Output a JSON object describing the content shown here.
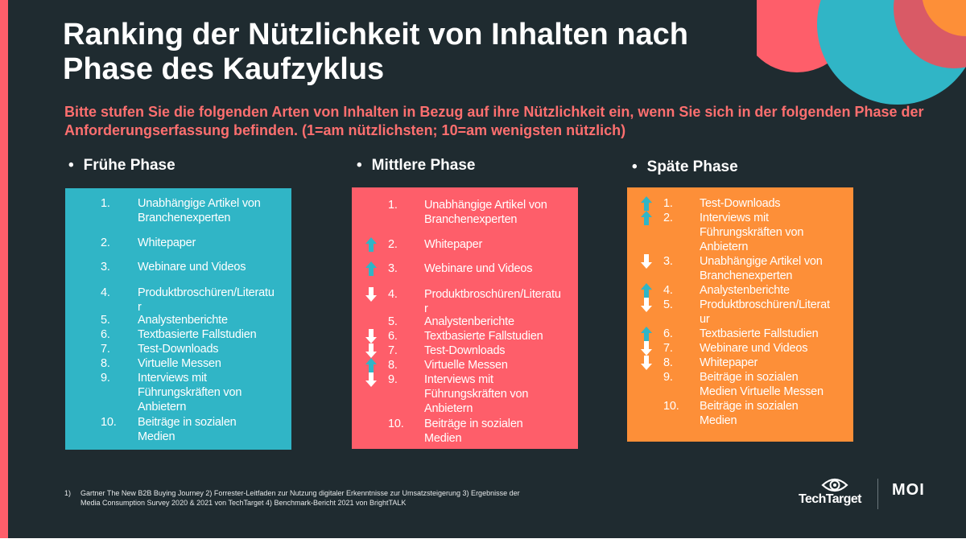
{
  "title": "Ranking der Nützlichkeit von Inhalten nach Phase des Kaufzyklus",
  "subtitle": "Bitte stufen Sie die folgenden Arten von Inhalten in Bezug auf ihre Nützlichkeit ein, wenn Sie sich in der folgenden Phase der Anforderungserfassung befinden. (1=am nützlichsten; 10=am wenigsten nützlich)",
  "bullet": "•",
  "colors": {
    "background": "#1f2b30",
    "accent_red": "#fe5e6a",
    "early_box": "#30b5c6",
    "late_box": "#fd8f38",
    "arrow_up": "#30b5c6",
    "arrow_down": "#ffffff"
  },
  "phases": {
    "early": {
      "heading": "Frühe Phase",
      "items": [
        {
          "num": "1.",
          "text_lines": [
            "Unabhängige Artikel von",
            "Branchenexperten"
          ],
          "arrow": "none"
        },
        {
          "num": "2.",
          "text_lines": [
            "Whitepaper"
          ],
          "arrow": "none"
        },
        {
          "num": "3.",
          "text_lines": [
            "Webinare und Videos"
          ],
          "arrow": "none"
        },
        {
          "num": "4.",
          "text_lines": [
            "Produktbroschüren/Literatu",
            "r"
          ],
          "arrow": "none"
        },
        {
          "num": "5.",
          "text_lines": [
            "Analystenberichte"
          ],
          "arrow": "none"
        },
        {
          "num": "6.",
          "text_lines": [
            "Textbasierte Fallstudien"
          ],
          "arrow": "none"
        },
        {
          "num": "7.",
          "text_lines": [
            "Test-Downloads"
          ],
          "arrow": "none"
        },
        {
          "num": "8.",
          "text_lines": [
            "Virtuelle Messen"
          ],
          "arrow": "none"
        },
        {
          "num": "9.",
          "text_lines": [
            "Interviews mit",
            "Führungskräften von",
            "Anbietern"
          ],
          "arrow": "none"
        },
        {
          "num": "10.",
          "text_lines": [
            "Beiträge in sozialen",
            "Medien"
          ],
          "arrow": "none"
        }
      ]
    },
    "middle": {
      "heading": "Mittlere Phase",
      "items": [
        {
          "num": "1.",
          "text_lines": [
            "Unabhängige Artikel von",
            "Branchenexperten"
          ],
          "arrow": "none"
        },
        {
          "num": "2.",
          "text_lines": [
            "Whitepaper"
          ],
          "arrow": "up"
        },
        {
          "num": "3.",
          "text_lines": [
            "Webinare und Videos"
          ],
          "arrow": "up"
        },
        {
          "num": "4.",
          "text_lines": [
            "Produktbroschüren/Literatu",
            "r"
          ],
          "arrow": "down"
        },
        {
          "num": "5.",
          "text_lines": [
            "Analystenberichte"
          ],
          "arrow": "none"
        },
        {
          "num": "6.",
          "text_lines": [
            "Textbasierte Fallstudien"
          ],
          "arrow": "down"
        },
        {
          "num": "7.",
          "text_lines": [
            "Test-Downloads"
          ],
          "arrow": "down"
        },
        {
          "num": "8.",
          "text_lines": [
            "Virtuelle Messen"
          ],
          "arrow": "up"
        },
        {
          "num": "9.",
          "text_lines": [
            "Interviews mit",
            "Führungskräften von",
            "Anbietern"
          ],
          "arrow": "down"
        },
        {
          "num": "10.",
          "text_lines": [
            "Beiträge in sozialen",
            "Medien"
          ],
          "arrow": "none"
        }
      ]
    },
    "late": {
      "heading": "Späte Phase",
      "items": [
        {
          "num": "1.",
          "text_lines": [
            "Test-Downloads"
          ],
          "arrow": "up"
        },
        {
          "num": "2.",
          "text_lines": [
            "Interviews mit",
            "Führungskräften von",
            "Anbietern"
          ],
          "arrow": "up"
        },
        {
          "num": "3.",
          "text_lines": [
            "Unabhängige Artikel von",
            "Branchenexperten"
          ],
          "arrow": "down"
        },
        {
          "num": "4.",
          "text_lines": [
            "Analystenberichte"
          ],
          "arrow": "up"
        },
        {
          "num": "5.",
          "text_lines": [
            "Produktbroschüren/Literat",
            "ur"
          ],
          "arrow": "down"
        },
        {
          "num": "6.",
          "text_lines": [
            "Textbasierte Fallstudien"
          ],
          "arrow": "up"
        },
        {
          "num": "7.",
          "text_lines": [
            "Webinare und Videos"
          ],
          "arrow": "down"
        },
        {
          "num": "8.",
          "text_lines": [
            "Whitepaper"
          ],
          "arrow": "down"
        },
        {
          "num": "9.",
          "text_lines": [
            "Beiträge in sozialen",
            "Medien Virtuelle Messen"
          ],
          "arrow": "none"
        },
        {
          "num": "10.",
          "text_lines": [
            "Beiträge in sozialen",
            "Medien"
          ],
          "arrow": "none"
        }
      ]
    }
  },
  "footnote": {
    "num": "1)",
    "text": "Gartner The New B2B Buying Journey 2) Forrester-Leitfaden zur Nutzung digitaler Erkenntnisse zur Umsatzsteigerung 3) Ergebnisse der Media Consumption Survey 2020 & 2021 von TechTarget 4)  Benchmark-Bericht 2021 von BrightTALK"
  },
  "logos": {
    "techtarget": "TechTarget",
    "moi": "MOI"
  }
}
